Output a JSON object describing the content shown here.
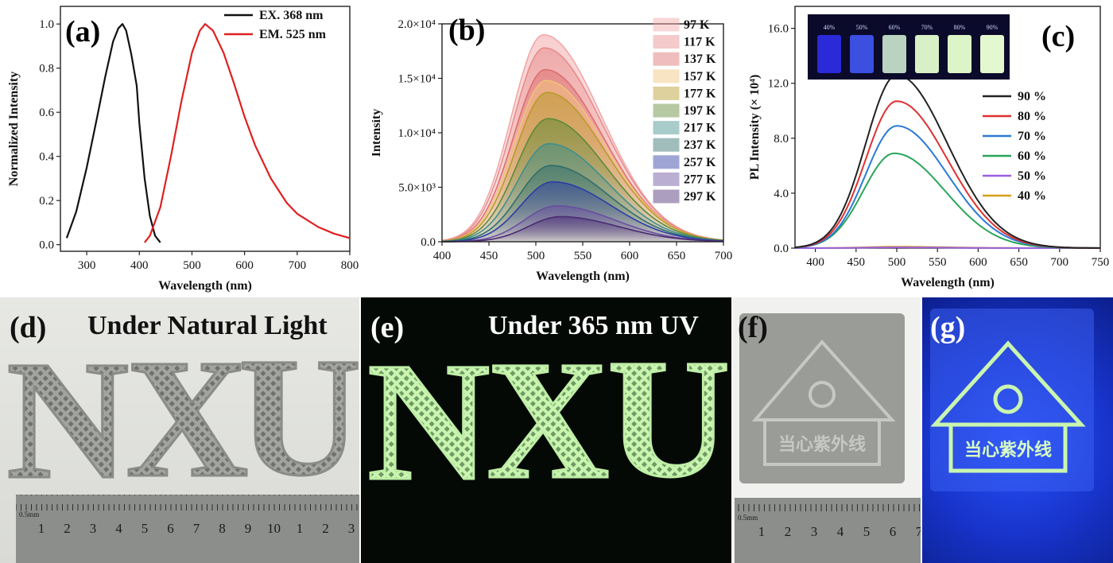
{
  "chart_data": [
    {
      "panel": "(a)",
      "type": "line",
      "xlabel": "Wavelength (nm)",
      "ylabel": "Normalized Intensity",
      "xlim": [
        250,
        800
      ],
      "ylim": [
        -0.03,
        1.08
      ],
      "xticks": [
        300,
        400,
        500,
        600,
        700,
        800
      ],
      "yticks": [
        0.0,
        0.2,
        0.4,
        0.6,
        0.8,
        1.0
      ],
      "ytick_labels": [
        "0.0",
        "0.2",
        "0.4",
        "0.6",
        "0.8",
        "1.0"
      ],
      "legend_position": "top-right",
      "series": [
        {
          "name": "EX. 368 nm",
          "color": "#111111",
          "x": [
            262,
            280,
            300,
            320,
            335,
            350,
            360,
            368,
            375,
            385,
            395,
            400,
            410,
            420,
            430,
            440
          ],
          "y": [
            0.03,
            0.15,
            0.35,
            0.58,
            0.76,
            0.92,
            0.98,
            1.0,
            0.97,
            0.86,
            0.72,
            0.55,
            0.3,
            0.13,
            0.04,
            0.01
          ]
        },
        {
          "name": "EM. 525 nm",
          "color": "#e02020",
          "x": [
            410,
            420,
            440,
            460,
            480,
            500,
            515,
            525,
            540,
            560,
            580,
            600,
            620,
            650,
            680,
            700,
            740,
            770,
            800
          ],
          "y": [
            0.01,
            0.04,
            0.17,
            0.4,
            0.65,
            0.87,
            0.97,
            1.0,
            0.97,
            0.87,
            0.73,
            0.58,
            0.45,
            0.3,
            0.19,
            0.14,
            0.08,
            0.05,
            0.03
          ]
        }
      ]
    },
    {
      "panel": "(b)",
      "type": "area",
      "xlabel": "Wavelength (nm)",
      "ylabel": "Intensity",
      "xlim": [
        400,
        700
      ],
      "ylim": [
        0,
        20000
      ],
      "xticks": [
        400,
        450,
        500,
        550,
        600,
        650,
        700
      ],
      "xtick_labels": [
        "400",
        "450",
        "500",
        "550",
        "600",
        "650",
        "700"
      ],
      "yticks": [
        0,
        5000,
        10000,
        15000,
        20000
      ],
      "ytick_labels": [
        "0.0",
        "5.0×10³",
        "1.0×10⁴",
        "1.5×10⁴",
        "2.0×10⁴"
      ],
      "legend_position": "right",
      "series": [
        {
          "name": "97 K",
          "color": "#f2a7a7",
          "peak_x": 508,
          "peak_y": 19000
        },
        {
          "name": "117 K",
          "color": "#e88b8b",
          "peak_x": 509,
          "peak_y": 17800
        },
        {
          "name": "137 K",
          "color": "#dd6f6f",
          "peak_x": 510,
          "peak_y": 15800
        },
        {
          "name": "157 K",
          "color": "#f0c27a",
          "peak_x": 511,
          "peak_y": 14800
        },
        {
          "name": "177 K",
          "color": "#b89a2a",
          "peak_x": 512,
          "peak_y": 13700
        },
        {
          "name": "197 K",
          "color": "#5e8a36",
          "peak_x": 513,
          "peak_y": 11300
        },
        {
          "name": "217 K",
          "color": "#3f8f8c",
          "peak_x": 514,
          "peak_y": 9000
        },
        {
          "name": "237 K",
          "color": "#2f6e6c",
          "peak_x": 516,
          "peak_y": 7000
        },
        {
          "name": "257 K",
          "color": "#2c3ca6",
          "peak_x": 518,
          "peak_y": 5500
        },
        {
          "name": "277 K",
          "color": "#6a4ea0",
          "peak_x": 522,
          "peak_y": 3300
        },
        {
          "name": "297 K",
          "color": "#4a2a73",
          "peak_x": 526,
          "peak_y": 2300
        }
      ]
    },
    {
      "panel": "(c)",
      "type": "line",
      "xlabel": "Wavelength (nm)",
      "ylabel": "PL Intensity (× 10⁴)",
      "xlim": [
        375,
        750
      ],
      "ylim": [
        0,
        17.6
      ],
      "xticks": [
        400,
        450,
        500,
        550,
        600,
        650,
        700,
        750
      ],
      "yticks": [
        0,
        4,
        8,
        12,
        16
      ],
      "ytick_labels": [
        "0.0",
        "4.0",
        "8.0",
        "12.0",
        "16.0"
      ],
      "legend_position": "right",
      "inset_labels": [
        "40%",
        "50%",
        "60%",
        "70%",
        "80%",
        "90%"
      ],
      "series": [
        {
          "name": "90 %",
          "color": "#222222",
          "peak_x": 500,
          "peak_y": 12.6
        },
        {
          "name": "80 %",
          "color": "#e03030",
          "peak_x": 500,
          "peak_y": 10.7
        },
        {
          "name": "70 %",
          "color": "#2a7ad6",
          "peak_x": 500,
          "peak_y": 8.9
        },
        {
          "name": "60 %",
          "color": "#2aa55a",
          "peak_x": 497,
          "peak_y": 6.9
        },
        {
          "name": "50 %",
          "color": "#9b5fe0",
          "peak_x": 500,
          "peak_y": 0.05
        },
        {
          "name": "40 %",
          "color": "#d4a017",
          "peak_x": 500,
          "peak_y": 0.1
        }
      ]
    }
  ],
  "photos": {
    "d": {
      "label": "(d)",
      "caption": "Under Natural Light",
      "letters": [
        "N",
        "X",
        "U"
      ],
      "ruler_ticks": [
        "1",
        "2",
        "3",
        "4",
        "5",
        "6",
        "7",
        "8",
        "9",
        "10",
        "1",
        "2",
        "3"
      ],
      "ruler_unit": "0.5mm"
    },
    "e": {
      "label": "(e)",
      "caption": "Under 365 nm UV",
      "letters": [
        "N",
        "X",
        "U"
      ]
    },
    "f": {
      "label": "(f)",
      "sign_text": "当心紫外线",
      "ruler_ticks": [
        "1",
        "2",
        "3",
        "4",
        "5",
        "6",
        "7"
      ],
      "ruler_unit": "0.5mm"
    },
    "g": {
      "label": "(g)",
      "sign_text": "当心紫外线"
    }
  },
  "colors": {
    "glow_green": "#c9f5b0",
    "uv_blue": "#1a3bd8",
    "grey_print": "#9a9c98"
  }
}
